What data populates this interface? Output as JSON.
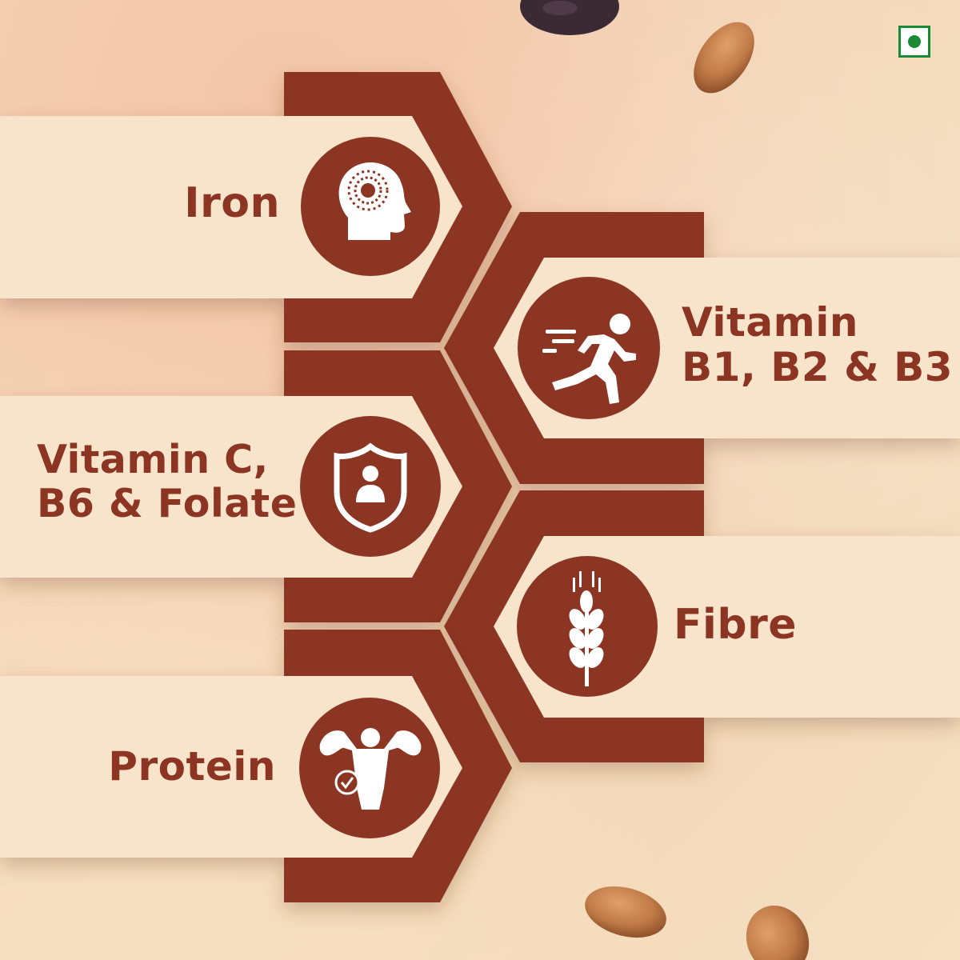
{
  "nutrients": [
    {
      "id": "iron",
      "icon": "brain-head-icon",
      "lines": [
        "Iron"
      ]
    },
    {
      "id": "vitamin-b",
      "icon": "running-person-icon",
      "lines": [
        "Vitamin",
        "B1, B2 & B3"
      ]
    },
    {
      "id": "vitamin-c",
      "icon": "shield-person-icon",
      "lines": [
        "Vitamin C,",
        "B6 & Folate"
      ]
    },
    {
      "id": "fibre",
      "icon": "wheat-icon",
      "lines": [
        "Fibre"
      ]
    },
    {
      "id": "protein",
      "icon": "muscle-body-icon",
      "lines": [
        "Protein"
      ]
    }
  ],
  "badge": {
    "icon": "veg-mark-icon"
  },
  "colors": {
    "hexagon": "#8c3523",
    "label_text": "#8c3523",
    "band": "#f7e4cb",
    "veg_mark": "#1a8a34",
    "almond": "#c07a47"
  }
}
